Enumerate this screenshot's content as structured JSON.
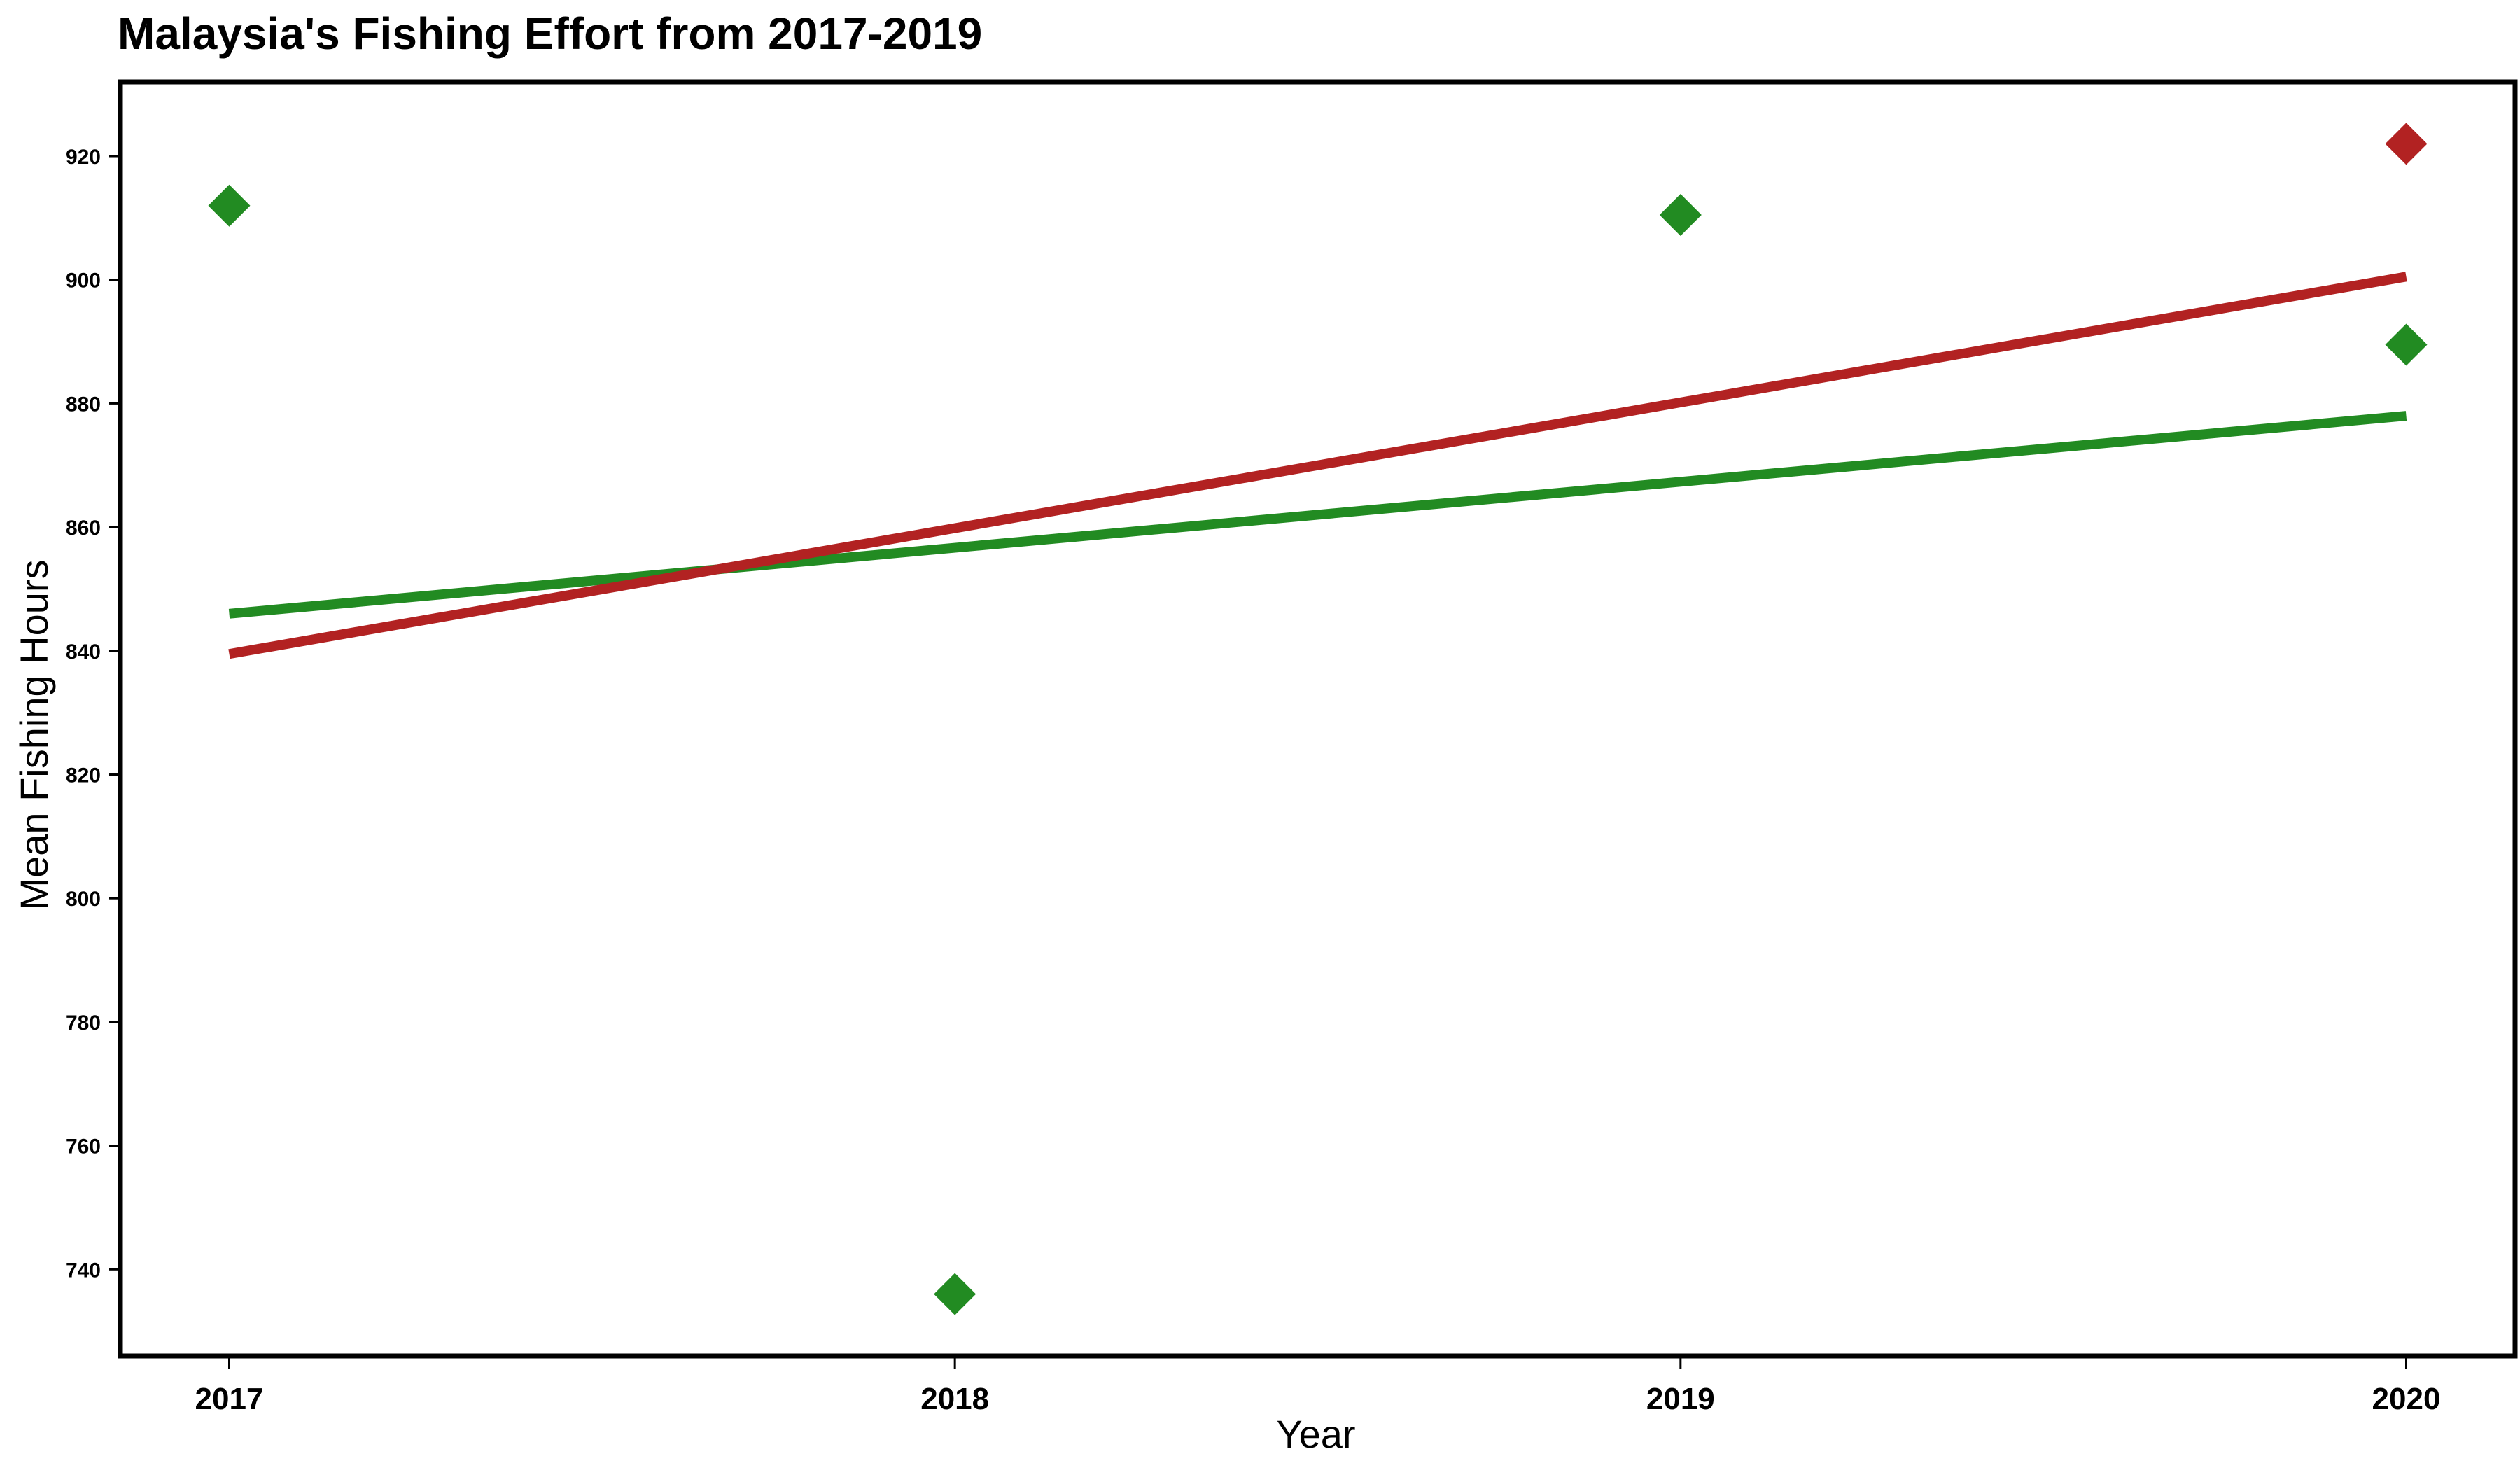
{
  "chart_data": {
    "type": "scatter",
    "title": "Malaysia's Fishing Effort from 2017-2019",
    "xlabel": "Year",
    "ylabel": "Mean Fishing Hours",
    "xlim": [
      2016.85,
      2020.15
    ],
    "ylim": [
      726,
      932
    ],
    "x_ticks": [
      "2017",
      "2018",
      "2019",
      "2020"
    ],
    "y_ticks": [
      "740",
      "760",
      "780",
      "800",
      "820",
      "840",
      "860",
      "880",
      "900",
      "920"
    ],
    "grid": false,
    "legend": "none",
    "series": [
      {
        "color": "#228B22",
        "marker": "diamond",
        "points": [
          {
            "x": 2017,
            "y": 912
          },
          {
            "x": 2018,
            "y": 736
          },
          {
            "x": 2019,
            "y": 910.5
          },
          {
            "x": 2020,
            "y": 889.5
          }
        ],
        "trend_line": {
          "x": [
            2017,
            2020
          ],
          "y": [
            846,
            878
          ]
        }
      },
      {
        "color": "#B22222",
        "marker": "diamond",
        "points": [
          {
            "x": 2020,
            "y": 922
          }
        ],
        "trend_line": {
          "x": [
            2017,
            2020
          ],
          "y": [
            839.5,
            900.5
          ]
        }
      }
    ]
  }
}
